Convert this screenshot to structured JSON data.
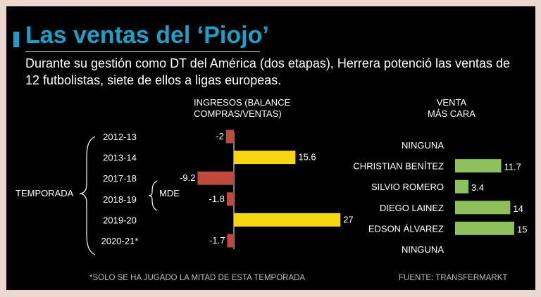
{
  "title": "Las ventas del ‘Piojo’",
  "subtitle": "Durante su gestión como DT del América (dos etapas), Herrera potenció las ventas de 12 futbolistas, siete de ellos a ligas europeas.",
  "headers": {
    "ingresos": [
      "INGRESOS (BALANCE",
      "COMPRAS/VENTAS)"
    ],
    "venta": [
      "VENTA",
      "MÁS CARA"
    ]
  },
  "labels": {
    "temporada": "TEMPORADA",
    "unit": "MDE"
  },
  "footnote": "*SOLO SE HA JUGADO LA MITAD DE ESTA TEMPORADA",
  "source": "FUENTE: TRANSFERMARKT",
  "colors": {
    "title": "#1aa0c9",
    "positive": "#f6d70f",
    "negative": "#c0483c",
    "sale": "#8dbf5b",
    "background": "#000000",
    "frame": "#ecd7d0"
  },
  "chart_data": [
    {
      "type": "bar",
      "orientation": "horizontal",
      "title": "INGRESOS (BALANCE COMPRAS/VENTAS)",
      "unit": "MDE",
      "categories": [
        "2012-13",
        "2013-14",
        "2017-18",
        "2018-19",
        "2019-20",
        "2020-21*"
      ],
      "values": [
        -2,
        15.6,
        -9.2,
        -1.8,
        27,
        -1.7
      ],
      "value_labels": [
        "-2",
        "15.6",
        "-9.2",
        "-1.8",
        "27",
        "-1.7"
      ]
    },
    {
      "type": "bar",
      "orientation": "horizontal",
      "title": "VENTA MÁS CARA",
      "categories": [
        "NINGUNA",
        "CHRISTIAN BENÍTEZ",
        "SILVIO ROMERO",
        "DIEGO LAINEZ",
        "EDSON ÁLVAREZ",
        "NINGUNA"
      ],
      "values": [
        null,
        11.7,
        3.4,
        14,
        15,
        null
      ],
      "value_labels": [
        "",
        "11.7",
        "3.4",
        "14",
        "15",
        ""
      ]
    }
  ]
}
